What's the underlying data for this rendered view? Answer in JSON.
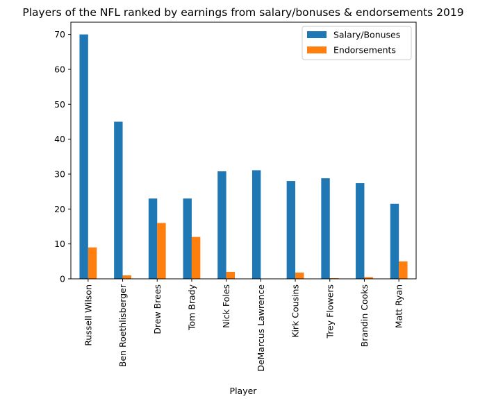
{
  "chart_data": {
    "type": "bar",
    "title": "Players of the NFL ranked by earnings from salary/bonuses & endorsements 2019",
    "xlabel": "Player",
    "ylabel": "",
    "categories": [
      "Russell Wilson",
      "Ben Roethlisberger",
      "Drew Brees",
      "Tom Brady",
      "Nick Foles",
      "DeMarcus Lawrence",
      "Kirk Cousins",
      "Trey Flowers",
      "Brandin Cooks",
      "Matt Ryan"
    ],
    "series": [
      {
        "name": "Salary/Bonuses",
        "color": "#1f77b4",
        "values": [
          70,
          45,
          23,
          23,
          30.8,
          31.1,
          28,
          28.8,
          27.4,
          21.5
        ]
      },
      {
        "name": "Endorsements",
        "color": "#ff7f0e",
        "values": [
          9,
          1,
          16,
          12,
          2,
          0.1,
          1.8,
          0.2,
          0.5,
          5
        ]
      }
    ],
    "ylim": [
      0,
      73.5
    ],
    "yticks": [
      0,
      10,
      20,
      30,
      40,
      50,
      60,
      70
    ],
    "grid": false,
    "legend": "top-right"
  }
}
